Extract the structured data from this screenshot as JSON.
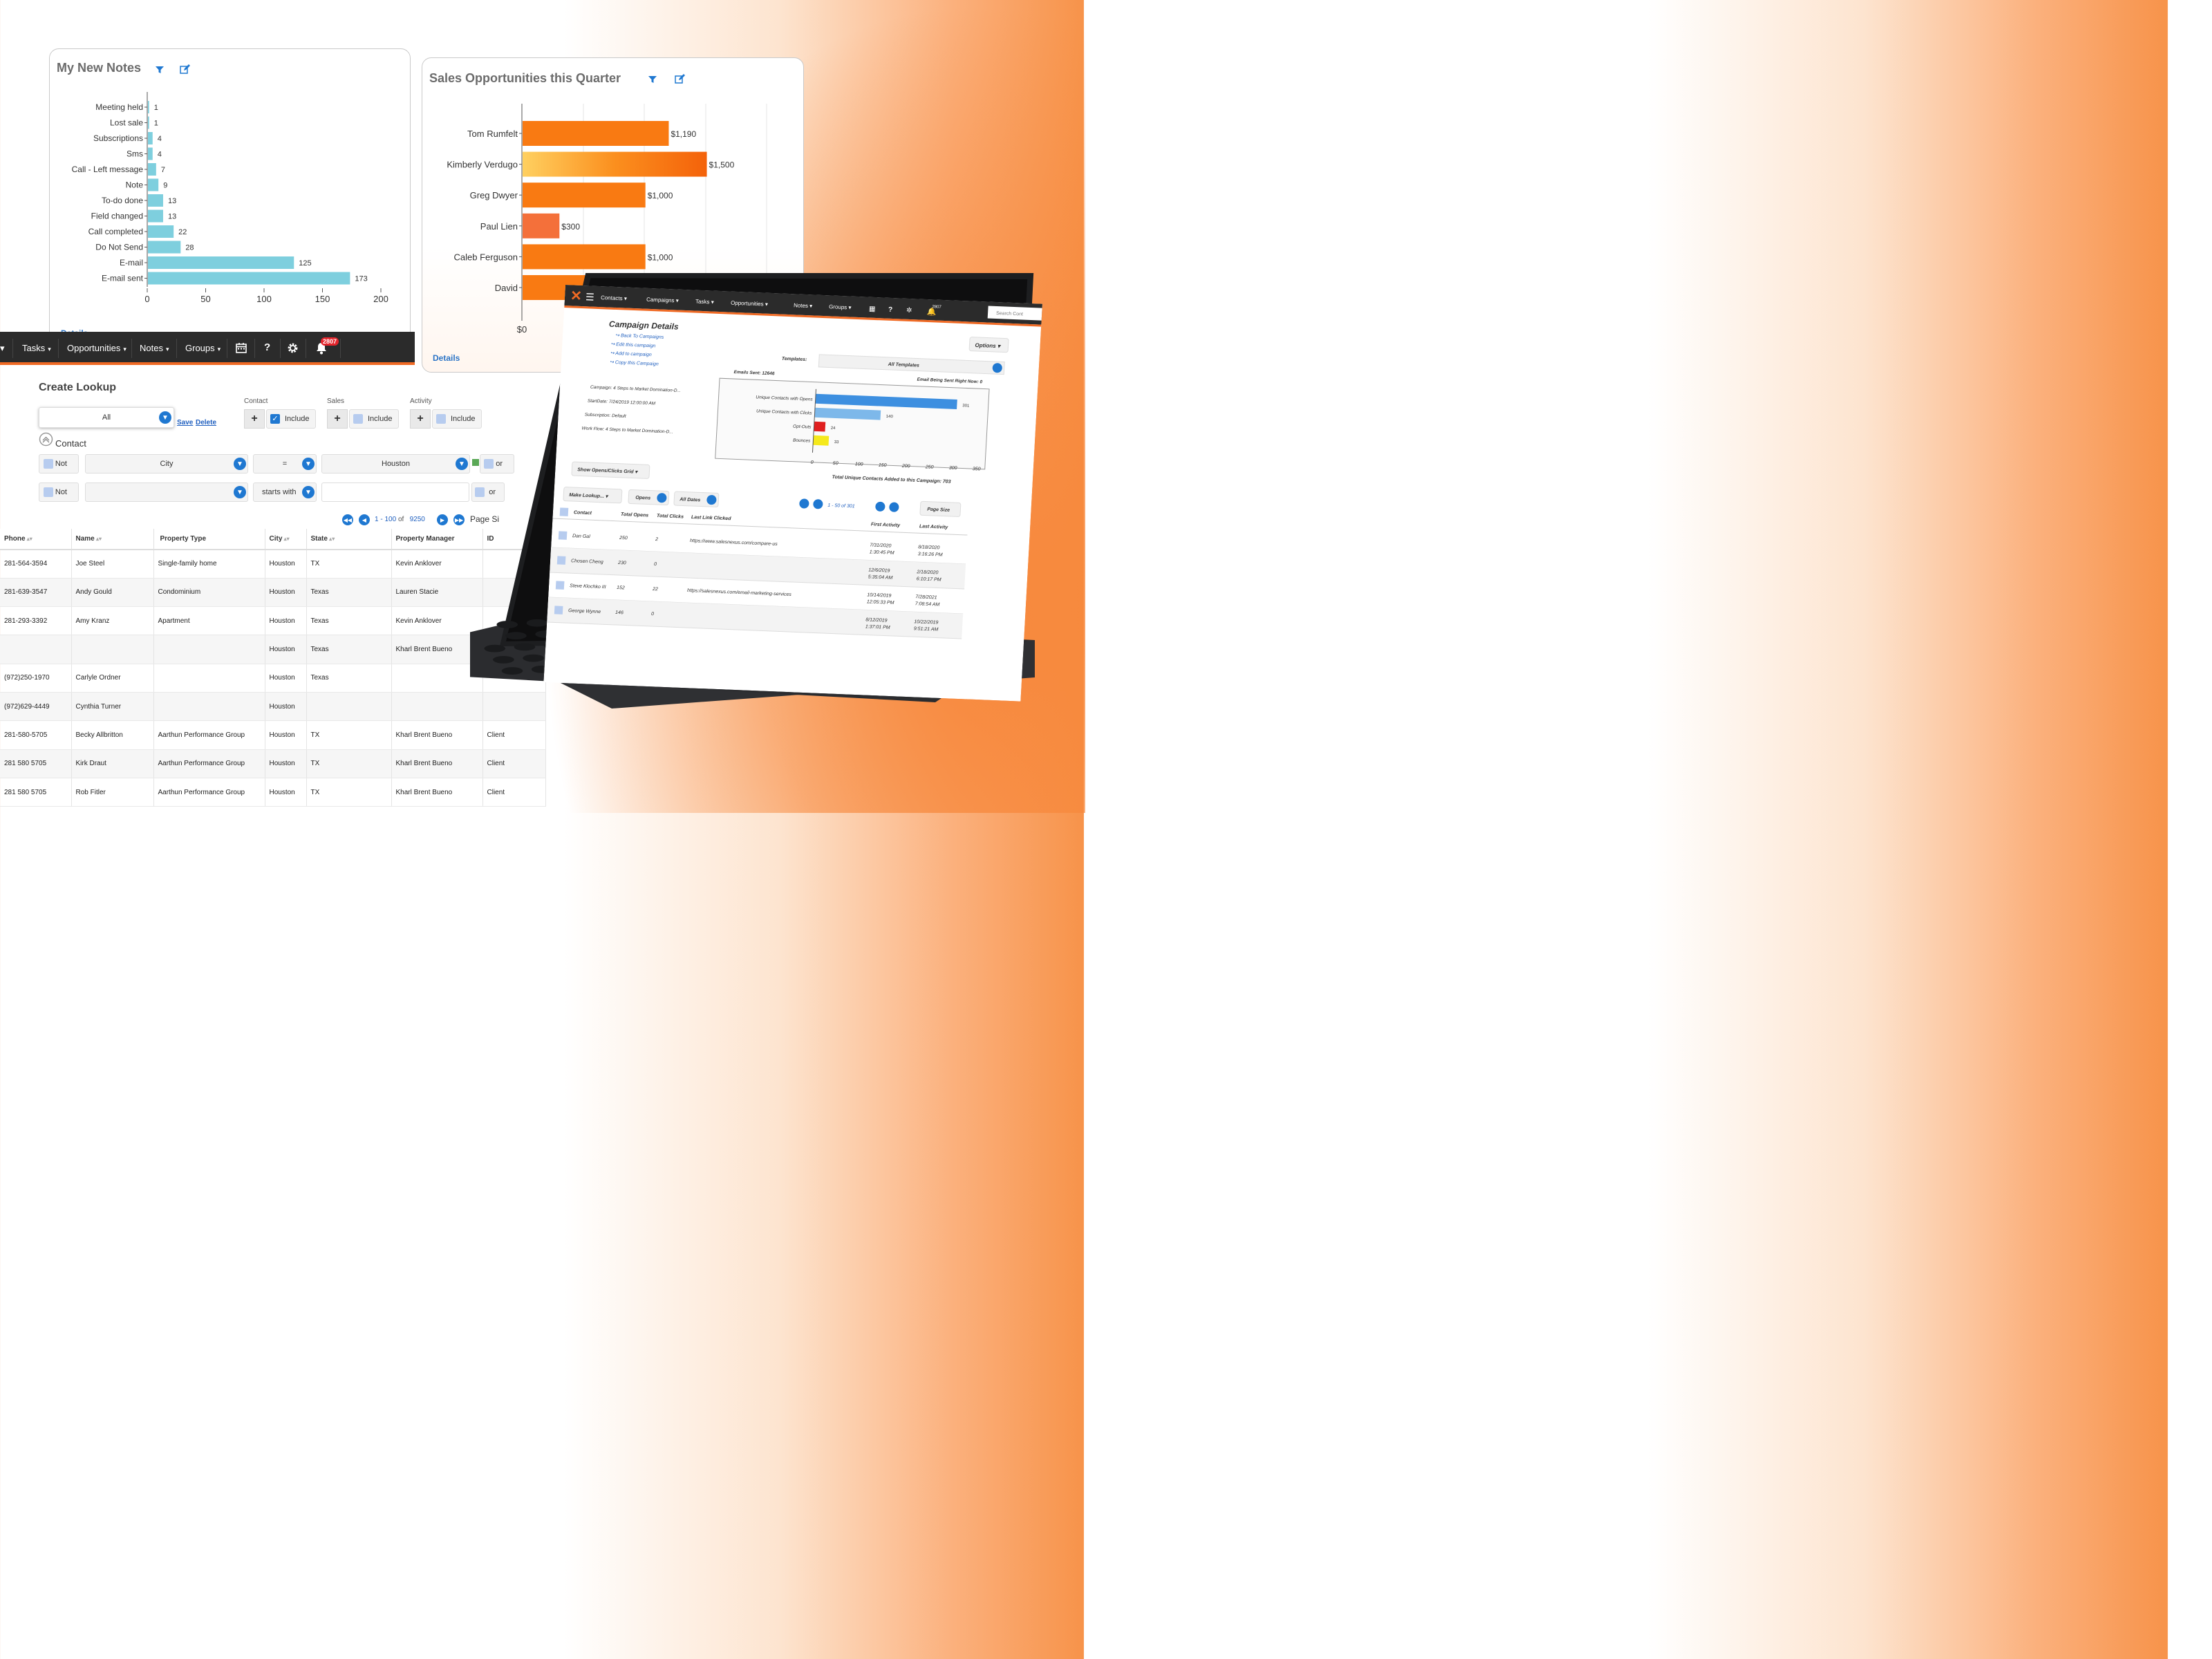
{
  "notes_panel": {
    "title": "My New Notes",
    "details": "Details",
    "filter_icon": "filter-icon",
    "edit_icon": "edit-icon"
  },
  "sales_panel": {
    "title": "Sales Opportunities this Quarter",
    "details": "Details",
    "filter_icon": "filter-icon",
    "edit_icon": "edit-icon"
  },
  "chart_data": [
    {
      "type": "bar",
      "orientation": "horizontal",
      "title": "My New Notes",
      "categories": [
        "Meeting held",
        "Lost sale",
        "Subscriptions",
        "Sms",
        "Call - Left message",
        "Note",
        "To-do done",
        "Field changed",
        "Call completed",
        "Do Not Send",
        "E-mail",
        "E-mail sent"
      ],
      "values": [
        1,
        1,
        4,
        4,
        7,
        9,
        13,
        13,
        22,
        28,
        125,
        173
      ],
      "xlim": [
        0,
        200
      ],
      "xticks": [
        0,
        50,
        100,
        150,
        200
      ],
      "color": "#7ecfde",
      "grid": false
    },
    {
      "type": "bar",
      "orientation": "horizontal",
      "title": "Sales Opportunities this Quarter",
      "categories": [
        "Tom Rumfelt",
        "Kimberly Verdugo",
        "Greg Dwyer",
        "Paul Lien",
        "Caleb Ferguson",
        "David"
      ],
      "values": [
        1190,
        1500,
        1000,
        300,
        1000,
        1000
      ],
      "value_labels": [
        "$1,190",
        "$1,500",
        "$1,000",
        "$300",
        "$1,000",
        ""
      ],
      "xticks_labels": [
        "$0"
      ],
      "color": "#f97a12",
      "grid": true
    },
    {
      "type": "bar",
      "orientation": "horizontal",
      "categories": [
        "Unique Contacts with Opens",
        "Unique Contacts with Clicks",
        "Opt-Outs",
        "Bounces"
      ],
      "values": [
        301,
        140,
        24,
        33
      ],
      "colors": [
        "#3d8fe0",
        "#7db8ea",
        "#e01f1f",
        "#f5e91c"
      ],
      "xlim": [
        0,
        350
      ],
      "xticks": [
        0,
        50,
        100,
        150,
        200,
        250,
        300,
        350
      ],
      "xlabel": "Total Unique Contacts Added to this Campaign: 703"
    }
  ],
  "navbar": {
    "items": [
      {
        "label": "Tasks"
      },
      {
        "label": "Opportunities"
      },
      {
        "label": "Notes"
      },
      {
        "label": "Groups"
      }
    ],
    "caret": "▾",
    "calendar_icon": "calendar-icon",
    "help_label": "?",
    "settings_icon": "gear-icon",
    "bell_icon": "bell-icon",
    "notification_count": "2807"
  },
  "lookup": {
    "title": "Create Lookup",
    "select_value": "All",
    "save": "Save",
    "delete": "Delete",
    "contact_label": "Contact",
    "sales_label": "Sales",
    "activity_label": "Activity",
    "include": "Include",
    "section": "Contact",
    "row1": {
      "not": "Not",
      "field": "City",
      "op": "=",
      "value": "Houston",
      "or": "or"
    },
    "row2": {
      "not": "Not",
      "field": "",
      "op": "starts with",
      "value": "",
      "or": "or"
    },
    "pager": {
      "start": "1",
      "sep": "-",
      "end": "100",
      "of": "of",
      "total": "9250",
      "page_size": "Page Si"
    }
  },
  "table": {
    "headers": [
      "Phone",
      "Name",
      "Property Type",
      "City",
      "State",
      "Property Manager",
      "ID"
    ],
    "rows": [
      [
        "281-564-3594",
        "Joe Steel",
        "Single-family home",
        "Houston",
        "TX",
        "Kevin Anklover",
        ""
      ],
      [
        "281-639-3547",
        "Andy Gould",
        "Condominium",
        "Houston",
        "Texas",
        "Lauren Stacie",
        ""
      ],
      [
        "281-293-3392",
        "Amy Kranz",
        "Apartment",
        "Houston",
        "Texas",
        "Kevin Anklover",
        ""
      ],
      [
        "",
        "",
        "",
        "Houston",
        "Texas",
        "Kharl Brent Bueno",
        ""
      ],
      [
        "(972)250-1970",
        "Carlyle Ordner",
        "",
        "Houston",
        "Texas",
        "",
        ""
      ],
      [
        "(972)629-4449",
        "Cynthia Turner",
        "",
        "Houston",
        "",
        "",
        ""
      ],
      [
        "281-580-5705",
        "Becky Allbritton",
        "Aarthun Performance Group",
        "Houston",
        "TX",
        "Kharl Brent Bueno",
        "Client"
      ],
      [
        "281 580 5705",
        "Kirk Draut",
        "Aarthun Performance Group",
        "Houston",
        "TX",
        "Kharl Brent Bueno",
        "Client"
      ],
      [
        "281 580 5705",
        "Rob Fitler",
        "Aarthun Performance Group",
        "Houston",
        "TX",
        "Kharl Brent Bueno",
        "Client"
      ]
    ]
  },
  "tablet": {
    "nav": [
      "Contacts",
      "Campaigns",
      "Tasks",
      "Opportunities",
      "Notes",
      "Groups"
    ],
    "nav_badge": "2807",
    "search_placeholder": "Search Cont",
    "campaign_title": "Campaign Details",
    "links": [
      "Back To Campaigns",
      "Edit this campaign",
      "Add to campaign",
      "Copy this Campaign"
    ],
    "options": "Options",
    "templates_label": "Templates:",
    "templates_value": "All Templates",
    "emails_sent": "Emails Sent: 12646",
    "email_now": "Email Being Sent Right Now: 0",
    "campaign": "Campaign: 4 Steps to Market Domination-D...",
    "start_date": "StartDate: 7/24/2019 12:00:00 AM",
    "subscription": "Subscription: Default",
    "workflow": "Work Flow: 4 Steps to Market Domination-D...",
    "show_grid": "Show Opens/Clicks Grid",
    "make_lookup": "Make Lookup...",
    "opens": "Opens",
    "all_dates": "All Dates",
    "pager": "1 - 50 of 301",
    "page_size": "Page Size",
    "headers": [
      "Contact",
      "Total Opens",
      "Total Clicks",
      "Last Link Clicked",
      "First Activity",
      "Last Activity"
    ],
    "rows": [
      [
        "Dan Gal",
        "250",
        "2",
        "https://www.salesnexus.com/compare-us",
        "7/31/2020 1:30:45 PM",
        "8/18/2020 3:16:26 PM"
      ],
      [
        "Chosen Cheng",
        "230",
        "0",
        "",
        "12/6/2019 5:35:04 AM",
        "2/18/2020 6:10:17 PM"
      ],
      [
        "Steve Klochko III",
        "152",
        "22",
        "https://salesnexus.com/email-marketing-services",
        "10/14/2019 12:05:33 PM",
        "7/28/2021 7:08:54 AM"
      ],
      [
        "George Wynne",
        "146",
        "0",
        "",
        "8/12/2019 1:37:01 PM",
        "10/22/2019 9:51:21 AM"
      ]
    ]
  }
}
